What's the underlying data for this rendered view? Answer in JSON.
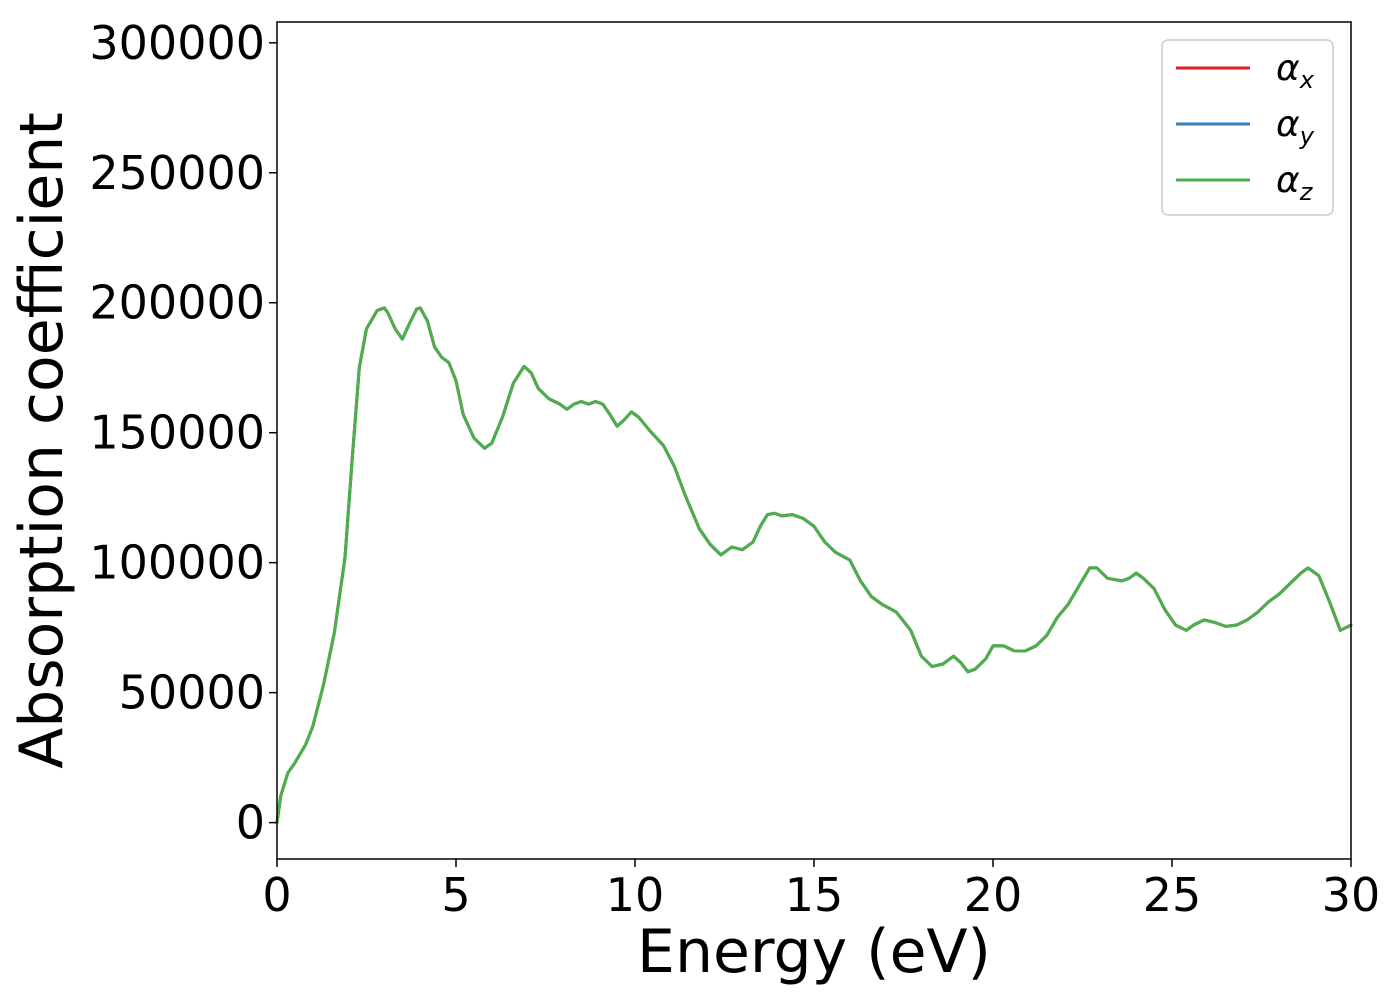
{
  "chart_data": {
    "type": "line",
    "title": "",
    "xlabel": "Energy (eV)",
    "ylabel": "Absorption coefficient",
    "xlim": [
      0,
      30
    ],
    "ylim": [
      -14000,
      308000
    ],
    "xticks": [
      0,
      5,
      10,
      15,
      20,
      25,
      30
    ],
    "xtick_labels": [
      "0",
      "5",
      "10",
      "15",
      "20",
      "25",
      "30"
    ],
    "yticks": [
      0,
      50000,
      100000,
      150000,
      200000,
      250000,
      300000
    ],
    "ytick_labels": [
      "0",
      "50000",
      "100000",
      "150000",
      "200000",
      "250000",
      "300000"
    ],
    "grid": false,
    "legend_position": "top-right",
    "x": [
      0,
      0.1,
      0.3,
      0.5,
      0.8,
      1.0,
      1.3,
      1.6,
      1.9,
      2.1,
      2.3,
      2.5,
      2.8,
      3.0,
      3.1,
      3.3,
      3.5,
      3.7,
      3.9,
      4.0,
      4.2,
      4.4,
      4.6,
      4.8,
      5.0,
      5.2,
      5.5,
      5.8,
      6.0,
      6.3,
      6.6,
      6.9,
      7.1,
      7.3,
      7.6,
      7.9,
      8.1,
      8.3,
      8.5,
      8.7,
      8.9,
      9.1,
      9.3,
      9.5,
      9.7,
      9.9,
      10.1,
      10.4,
      10.8,
      11.1,
      11.4,
      11.8,
      12.1,
      12.4,
      12.7,
      13.0,
      13.3,
      13.5,
      13.7,
      13.9,
      14.1,
      14.4,
      14.7,
      15.0,
      15.3,
      15.6,
      16.0,
      16.3,
      16.6,
      16.9,
      17.3,
      17.7,
      18.0,
      18.3,
      18.6,
      18.9,
      19.1,
      19.3,
      19.5,
      19.8,
      20.0,
      20.3,
      20.6,
      20.9,
      21.2,
      21.5,
      21.8,
      22.1,
      22.4,
      22.7,
      22.9,
      23.2,
      23.6,
      23.8,
      24.0,
      24.2,
      24.5,
      24.8,
      25.1,
      25.4,
      25.6,
      25.9,
      26.2,
      26.5,
      26.8,
      27.1,
      27.4,
      27.7,
      28.0,
      28.3,
      28.6,
      28.8,
      29.1,
      29.4,
      29.7,
      30.0
    ],
    "series": [
      {
        "name": "α",
        "subscript": "x",
        "color": "#e41a1c",
        "values": [
          0,
          10000,
          19000,
          23000,
          30000,
          37000,
          53000,
          73000,
          102000,
          140000,
          175000,
          190000,
          197000,
          198000,
          196000,
          190000,
          186000,
          192000,
          197500,
          198000,
          193000,
          183000,
          179000,
          177000,
          170000,
          157000,
          148000,
          144000,
          146000,
          156000,
          169000,
          175500,
          173000,
          167000,
          163000,
          161000,
          159000,
          161000,
          162000,
          161000,
          162000,
          161000,
          157000,
          152500,
          155000,
          158000,
          156000,
          151000,
          145000,
          137000,
          126000,
          113000,
          107000,
          103000,
          106000,
          105000,
          108000,
          114000,
          118500,
          119000,
          118000,
          118500,
          117000,
          114000,
          108000,
          104000,
          101000,
          93000,
          87000,
          84000,
          81000,
          74000,
          64000,
          60000,
          61000,
          64000,
          61500,
          58000,
          59000,
          63000,
          68000,
          68000,
          66000,
          66000,
          68000,
          72000,
          79000,
          84000,
          91000,
          98000,
          98000,
          94000,
          93000,
          94000,
          96000,
          94000,
          90000,
          82000,
          76000,
          74000,
          76000,
          78000,
          77000,
          75500,
          76000,
          78000,
          81000,
          85000,
          88000,
          92000,
          96000,
          98000,
          95000,
          85000,
          74000,
          76000
        ]
      },
      {
        "name": "α",
        "subscript": "y",
        "color": "#377eb8",
        "values": [
          0,
          10000,
          19000,
          23000,
          30000,
          37000,
          53000,
          73000,
          102000,
          140000,
          175000,
          190000,
          197000,
          198000,
          196000,
          190000,
          186000,
          192000,
          197500,
          198000,
          193000,
          183000,
          179000,
          177000,
          170000,
          157000,
          148000,
          144000,
          146000,
          156000,
          169000,
          175500,
          173000,
          167000,
          163000,
          161000,
          159000,
          161000,
          162000,
          161000,
          162000,
          161000,
          157000,
          152500,
          155000,
          158000,
          156000,
          151000,
          145000,
          137000,
          126000,
          113000,
          107000,
          103000,
          106000,
          105000,
          108000,
          114000,
          118500,
          119000,
          118000,
          118500,
          117000,
          114000,
          108000,
          104000,
          101000,
          93000,
          87000,
          84000,
          81000,
          74000,
          64000,
          60000,
          61000,
          64000,
          61500,
          58000,
          59000,
          63000,
          68000,
          68000,
          66000,
          66000,
          68000,
          72000,
          79000,
          84000,
          91000,
          98000,
          98000,
          94000,
          93000,
          94000,
          96000,
          94000,
          90000,
          82000,
          76000,
          74000,
          76000,
          78000,
          77000,
          75500,
          76000,
          78000,
          81000,
          85000,
          88000,
          92000,
          96000,
          98000,
          95000,
          85000,
          74000,
          76000
        ]
      },
      {
        "name": "α",
        "subscript": "z",
        "color": "#4daf4a",
        "values": [
          0,
          10000,
          19000,
          23000,
          30000,
          37000,
          53000,
          73000,
          102000,
          140000,
          175000,
          190000,
          197000,
          198000,
          196000,
          190000,
          186000,
          192000,
          197500,
          198000,
          193000,
          183000,
          179000,
          177000,
          170000,
          157000,
          148000,
          144000,
          146000,
          156000,
          169000,
          175500,
          173000,
          167000,
          163000,
          161000,
          159000,
          161000,
          162000,
          161000,
          162000,
          161000,
          157000,
          152500,
          155000,
          158000,
          156000,
          151000,
          145000,
          137000,
          126000,
          113000,
          107000,
          103000,
          106000,
          105000,
          108000,
          114000,
          118500,
          119000,
          118000,
          118500,
          117000,
          114000,
          108000,
          104000,
          101000,
          93000,
          87000,
          84000,
          81000,
          74000,
          64000,
          60000,
          61000,
          64000,
          61500,
          58000,
          59000,
          63000,
          68000,
          68000,
          66000,
          66000,
          68000,
          72000,
          79000,
          84000,
          91000,
          98000,
          98000,
          94000,
          93000,
          94000,
          96000,
          94000,
          90000,
          82000,
          76000,
          74000,
          76000,
          78000,
          77000,
          75500,
          76000,
          78000,
          81000,
          85000,
          88000,
          92000,
          96000,
          98000,
          95000,
          85000,
          74000,
          76000
        ]
      }
    ]
  }
}
